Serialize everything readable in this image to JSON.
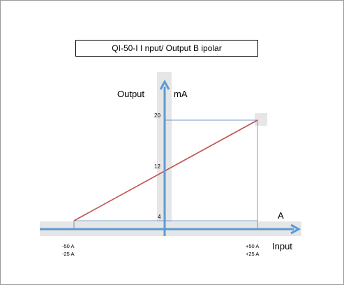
{
  "title": "QI-50-I I nput/ Output B ipolar",
  "output_axis": {
    "label": "Output",
    "unit": "mA"
  },
  "input_axis": {
    "label": "Input",
    "unit": "A"
  },
  "y_ticks": [
    "20",
    "12",
    "4"
  ],
  "x_left_ticks": [
    "-50 A",
    "-25 A"
  ],
  "x_right_ticks": [
    "+50 A",
    "+25 A"
  ],
  "colors": {
    "axis": "#5b9bd5",
    "shade": "#e6e6e6",
    "line": "#c0504d",
    "guide": "#4f81bd"
  },
  "chart_data": {
    "type": "line",
    "series": [
      {
        "x": [
          -50,
          50
        ],
        "y": [
          4,
          20
        ]
      }
    ],
    "ylim": [
      4,
      20
    ],
    "y_ticks": [
      4,
      12,
      20
    ],
    "x_ticks_primary": [
      -50,
      50
    ],
    "x_ticks_secondary": [
      -25,
      25
    ]
  }
}
